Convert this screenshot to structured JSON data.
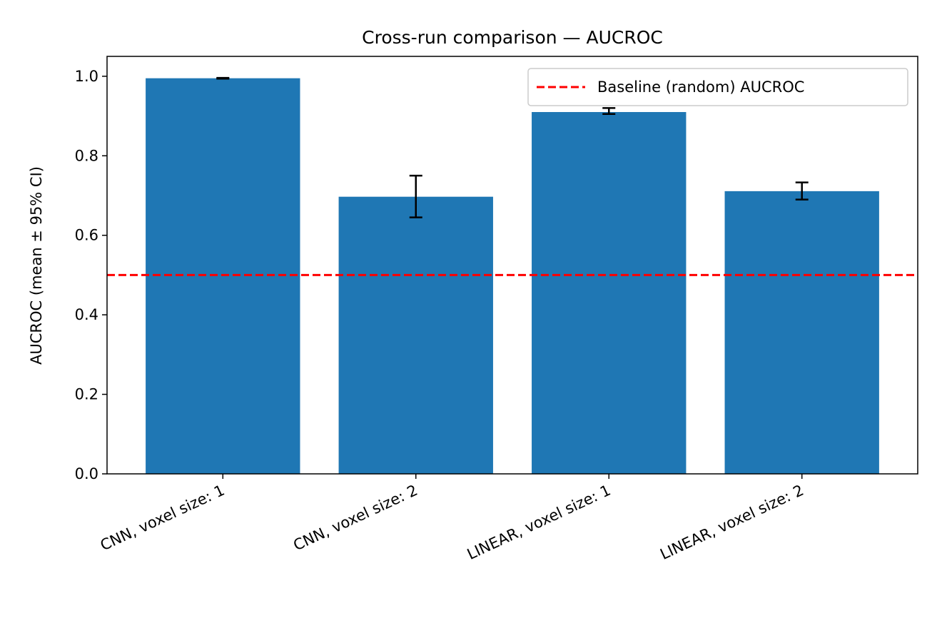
{
  "chart_data": {
    "type": "bar",
    "title": "Cross-run comparison — AUCROC",
    "xlabel": "",
    "ylabel": "AUCROC (mean ± 95% CI)",
    "categories": [
      "CNN, voxel size: 1",
      "CNN, voxel size: 2",
      "LINEAR, voxel size: 1",
      "LINEAR, voxel size: 2"
    ],
    "values": [
      0.995,
      0.697,
      0.91,
      0.711
    ],
    "ci_lower": [
      0.994,
      0.645,
      0.905,
      0.69
    ],
    "ci_upper": [
      0.996,
      0.75,
      0.92,
      0.733
    ],
    "ylim": [
      0.0,
      1.05
    ],
    "yticks": [
      "0.0",
      "0.2",
      "0.4",
      "0.6",
      "0.8",
      "1.0"
    ],
    "bar_color": "#1f77b4",
    "baseline": {
      "value": 0.5,
      "label": "Baseline (random) AUCROC",
      "color": "#ff0000",
      "style": "dashed"
    },
    "legend_position": "top-right",
    "grid": false
  }
}
